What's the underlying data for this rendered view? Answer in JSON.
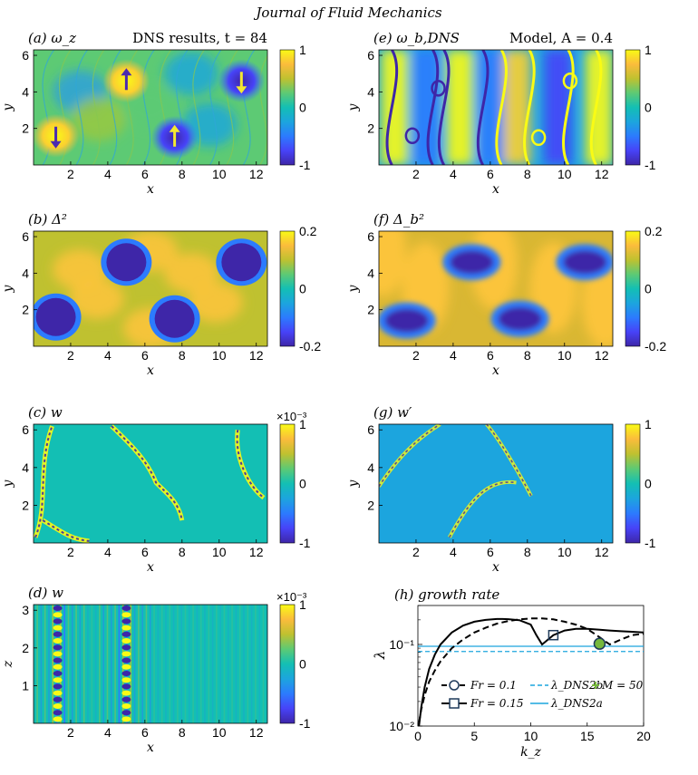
{
  "header": "Journal of Fluid Mechanics",
  "colormap": [
    "#3e26a8",
    "#4743f8",
    "#2c7bfe",
    "#1ca5de",
    "#13bfb4",
    "#5dca74",
    "#bfc130",
    "#fbbc3c",
    "#f9fb15"
  ],
  "panels": [
    {
      "id": "a",
      "label": "(a) ω_z",
      "title": "DNS results, t = 84",
      "xlabel": "x",
      "ylabel": "y",
      "xticks": [
        "2",
        "4",
        "6",
        "8",
        "10",
        "12"
      ],
      "yticks": [
        "2",
        "4",
        "6"
      ],
      "cbar_ticks": [
        "1",
        "0",
        "-1"
      ],
      "cbar_exp": "",
      "field": "vortex"
    },
    {
      "id": "b",
      "label": "(b) Δ²",
      "title": "",
      "xlabel": "x",
      "ylabel": "y",
      "xticks": [
        "2",
        "4",
        "6",
        "8",
        "10",
        "12"
      ],
      "yticks": [
        "2",
        "4",
        "6"
      ],
      "cbar_ticks": [
        "0.2",
        "0",
        "-0.2"
      ],
      "cbar_exp": "",
      "field": "delta"
    },
    {
      "id": "c",
      "label": "(c) w",
      "title": "",
      "xlabel": "x",
      "ylabel": "y",
      "xticks": [
        "2",
        "4",
        "6",
        "8",
        "10",
        "12"
      ],
      "yticks": [
        "2",
        "4",
        "6"
      ],
      "cbar_ticks": [
        "1",
        "0",
        "-1"
      ],
      "cbar_exp": "×10⁻³",
      "field": "wave"
    },
    {
      "id": "d",
      "label": "(d) w",
      "title": "",
      "xlabel": "x",
      "ylabel": "z",
      "xticks": [
        "2",
        "4",
        "6",
        "8",
        "10",
        "12"
      ],
      "yticks": [
        "1",
        "2",
        "3"
      ],
      "cbar_ticks": [
        "1",
        "0",
        "-1"
      ],
      "cbar_exp": "×10⁻³",
      "field": "vertical"
    },
    {
      "id": "e",
      "label": "(e) ω_b,DNS",
      "title": "Model, A = 0.4",
      "xlabel": "x",
      "ylabel": "y",
      "xticks": [
        "2",
        "4",
        "6",
        "8",
        "10",
        "12"
      ],
      "yticks": [
        "2",
        "4",
        "6"
      ],
      "cbar_ticks": [
        "1",
        "0",
        "-1"
      ],
      "cbar_exp": "",
      "field": "model"
    },
    {
      "id": "f",
      "label": "(f) Δ_b²",
      "title": "",
      "xlabel": "x",
      "ylabel": "y",
      "xticks": [
        "2",
        "4",
        "6",
        "8",
        "10",
        "12"
      ],
      "yticks": [
        "2",
        "4",
        "6"
      ],
      "cbar_ticks": [
        "0.2",
        "0",
        "-0.2"
      ],
      "cbar_exp": "",
      "field": "deltab"
    },
    {
      "id": "g",
      "label": "(g) w′",
      "title": "",
      "xlabel": "x",
      "ylabel": "y",
      "xticks": [
        "2",
        "4",
        "6",
        "8",
        "10",
        "12"
      ],
      "yticks": [
        "2",
        "4",
        "6"
      ],
      "cbar_ticks": [
        "1",
        "0",
        "-1"
      ],
      "cbar_exp": "",
      "field": "wprime"
    }
  ],
  "chart_data": {
    "type": "line",
    "label": "(h) growth rate",
    "xlabel": "k_z",
    "ylabel": "λ",
    "xlim": [
      0,
      20
    ],
    "ylim": [
      0.01,
      0.3
    ],
    "yscale": "log",
    "xticks": [
      "0",
      "5",
      "10",
      "15",
      "20"
    ],
    "yticks": [
      "10⁻²",
      "10⁻¹"
    ],
    "series": [
      {
        "name": "Fr = 0.1",
        "style": "dashed",
        "x": [
          0.1,
          0.3,
          0.6,
          1,
          1.5,
          2,
          3,
          4,
          5,
          6,
          7,
          8,
          9,
          10,
          11,
          12,
          13,
          14,
          15,
          16,
          17,
          18,
          19,
          20
        ],
        "y": [
          0.011,
          0.016,
          0.024,
          0.035,
          0.048,
          0.062,
          0.09,
          0.115,
          0.14,
          0.16,
          0.18,
          0.193,
          0.203,
          0.208,
          0.208,
          0.203,
          0.19,
          0.175,
          0.155,
          0.125,
          0.1,
          0.115,
          0.13,
          0.135
        ]
      },
      {
        "name": "Fr = 0.15",
        "style": "solid",
        "x": [
          0.1,
          0.3,
          0.6,
          1,
          1.5,
          2,
          3,
          4,
          5,
          6,
          7,
          7.5,
          8,
          9,
          10,
          10.5,
          11,
          12,
          13,
          14,
          15,
          16,
          17,
          18,
          19,
          20
        ],
        "y": [
          0.01,
          0.017,
          0.03,
          0.05,
          0.075,
          0.1,
          0.14,
          0.17,
          0.19,
          0.2,
          0.205,
          0.205,
          0.204,
          0.198,
          0.175,
          0.13,
          0.1,
          0.13,
          0.148,
          0.155,
          0.155,
          0.152,
          0.148,
          0.145,
          0.143,
          0.14
        ]
      }
    ],
    "hlines": [
      {
        "name": "λ_DNS2b",
        "style": "dashed",
        "y": 0.082
      },
      {
        "name": "λ_DNS2a",
        "style": "solid",
        "y": 0.095
      }
    ],
    "markers": [
      {
        "series": "Fr = 0.1",
        "shape": "circle",
        "x": 16.1,
        "y": 0.102
      },
      {
        "series": "Fr = 0.15",
        "shape": "square",
        "x": 12,
        "y": 0.13
      },
      {
        "series": "M = 50",
        "shape": "star",
        "x": 16.1,
        "y": 0.102
      }
    ],
    "legend": [
      "Fr = 0.1",
      "Fr = 0.15",
      "λ_DNS2b",
      "λ_DNS2a",
      "M = 50"
    ],
    "legend_position": "bottom"
  }
}
